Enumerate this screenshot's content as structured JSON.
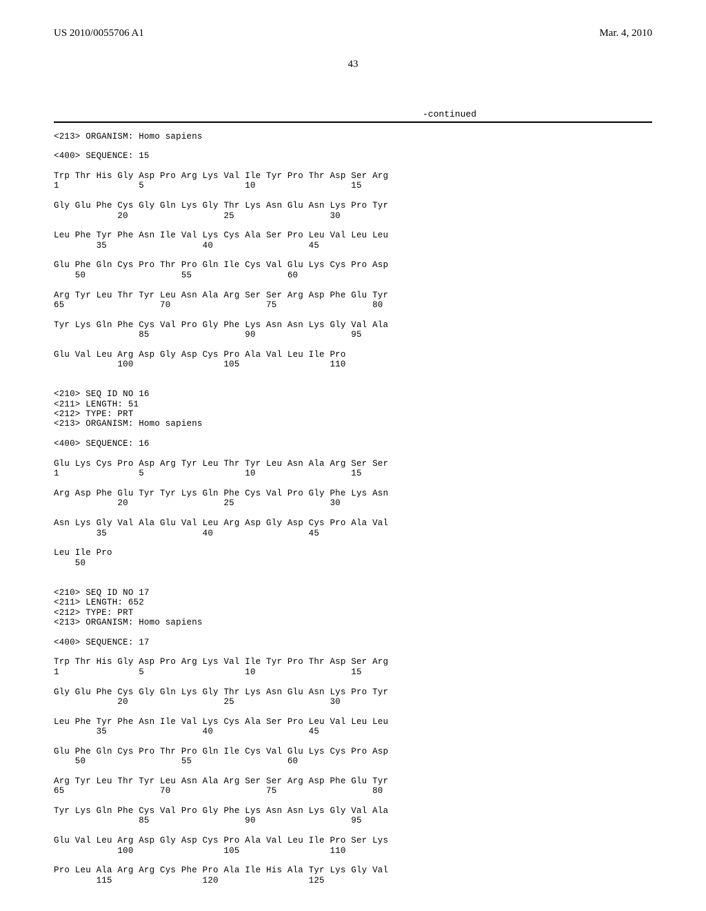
{
  "header": {
    "pub_number": "US 2010/0055706 A1",
    "pub_date": "Mar. 4, 2010"
  },
  "page_number": "43",
  "continued_label": "-continued",
  "seq_text": "<213> ORGANISM: Homo sapiens\n\n<400> SEQUENCE: 15\n\nTrp Thr His Gly Asp Pro Arg Lys Val Ile Tyr Pro Thr Asp Ser Arg\n1               5                   10                  15\n\nGly Glu Phe Cys Gly Gln Lys Gly Thr Lys Asn Glu Asn Lys Pro Tyr\n            20                  25                  30\n\nLeu Phe Tyr Phe Asn Ile Val Lys Cys Ala Ser Pro Leu Val Leu Leu\n        35                  40                  45\n\nGlu Phe Gln Cys Pro Thr Pro Gln Ile Cys Val Glu Lys Cys Pro Asp\n    50                  55                  60\n\nArg Tyr Leu Thr Tyr Leu Asn Ala Arg Ser Ser Arg Asp Phe Glu Tyr\n65                  70                  75                  80\n\nTyr Lys Gln Phe Cys Val Pro Gly Phe Lys Asn Asn Lys Gly Val Ala\n                85                  90                  95\n\nGlu Val Leu Arg Asp Gly Asp Cys Pro Ala Val Leu Ile Pro\n            100                 105                 110\n\n\n<210> SEQ ID NO 16\n<211> LENGTH: 51\n<212> TYPE: PRT\n<213> ORGANISM: Homo sapiens\n\n<400> SEQUENCE: 16\n\nGlu Lys Cys Pro Asp Arg Tyr Leu Thr Tyr Leu Asn Ala Arg Ser Ser\n1               5                   10                  15\n\nArg Asp Phe Glu Tyr Tyr Lys Gln Phe Cys Val Pro Gly Phe Lys Asn\n            20                  25                  30\n\nAsn Lys Gly Val Ala Glu Val Leu Arg Asp Gly Asp Cys Pro Ala Val\n        35                  40                  45\n\nLeu Ile Pro\n    50\n\n\n<210> SEQ ID NO 17\n<211> LENGTH: 652\n<212> TYPE: PRT\n<213> ORGANISM: Homo sapiens\n\n<400> SEQUENCE: 17\n\nTrp Thr His Gly Asp Pro Arg Lys Val Ile Tyr Pro Thr Asp Ser Arg\n1               5                   10                  15\n\nGly Glu Phe Cys Gly Gln Lys Gly Thr Lys Asn Glu Asn Lys Pro Tyr\n            20                  25                  30\n\nLeu Phe Tyr Phe Asn Ile Val Lys Cys Ala Ser Pro Leu Val Leu Leu\n        35                  40                  45\n\nGlu Phe Gln Cys Pro Thr Pro Gln Ile Cys Val Glu Lys Cys Pro Asp\n    50                  55                  60\n\nArg Tyr Leu Thr Tyr Leu Asn Ala Arg Ser Ser Arg Asp Phe Glu Tyr\n65                  70                  75                  80\n\nTyr Lys Gln Phe Cys Val Pro Gly Phe Lys Asn Asn Lys Gly Val Ala\n                85                  90                  95\n\nGlu Val Leu Arg Asp Gly Asp Cys Pro Ala Val Leu Ile Pro Ser Lys\n            100                 105                 110\n\nPro Leu Ala Arg Arg Cys Phe Pro Ala Ile His Ala Tyr Lys Gly Val\n        115                 120                 125"
}
